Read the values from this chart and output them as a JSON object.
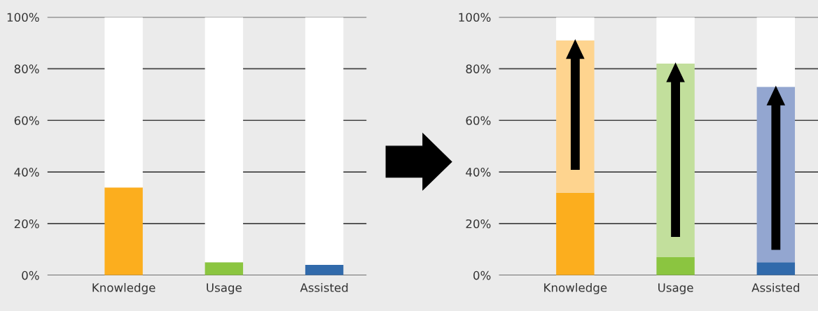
{
  "chart_data": [
    {
      "type": "bar",
      "stacked": true,
      "categories": [
        "Knowledge",
        "Usage",
        "Assisted"
      ],
      "series": [
        {
          "colors": [
            "#fcae1e",
            "#8bc540",
            "#316aab"
          ],
          "values": [
            34,
            5,
            4
          ]
        },
        {
          "color": "#ffffff",
          "values": [
            66,
            95,
            96
          ]
        }
      ],
      "ylim": [
        0,
        100
      ],
      "yticks": [
        {
          "value": 0,
          "label": "0%"
        },
        {
          "value": 20,
          "label": "20%"
        },
        {
          "value": 40,
          "label": "40%"
        },
        {
          "value": 60,
          "label": "60%"
        },
        {
          "value": 80,
          "label": "80%"
        },
        {
          "value": 100,
          "label": "100%"
        }
      ],
      "grid": "y"
    },
    {
      "type": "bar",
      "stacked": true,
      "categories": [
        "Knowledge",
        "Usage",
        "Assisted"
      ],
      "series": [
        {
          "colors": [
            "#fcae1e",
            "#8bc540",
            "#316aab"
          ],
          "values": [
            32,
            7,
            5
          ]
        },
        {
          "colors": [
            "#fed48f",
            "#c2df9c",
            "#93a6d0"
          ],
          "values": [
            59,
            75,
            68
          ]
        },
        {
          "color": "#ffffff",
          "values": [
            9,
            18,
            27
          ]
        }
      ],
      "ylim": [
        0,
        100
      ],
      "yticks": [
        {
          "value": 0,
          "label": "0%"
        },
        {
          "value": 20,
          "label": "20%"
        },
        {
          "value": 40,
          "label": "40%"
        },
        {
          "value": 60,
          "label": "60%"
        },
        {
          "value": 80,
          "label": "80%"
        },
        {
          "value": 100,
          "label": "100%"
        }
      ],
      "grid": "y"
    }
  ]
}
